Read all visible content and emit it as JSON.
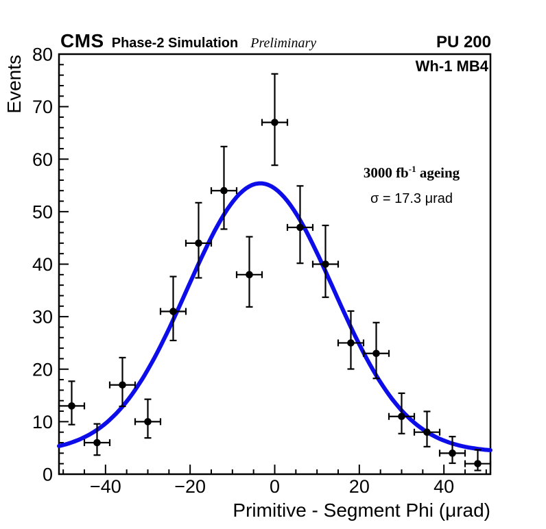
{
  "header": {
    "experiment": "CMS",
    "label": "Phase-2 Simulation",
    "status": "Preliminary",
    "pileup": "PU 200"
  },
  "plot": {
    "region_label": "Wh-1 MB4"
  },
  "annotations": {
    "luminosity_prefix": "3000 fb",
    "luminosity_exp": "-1",
    "luminosity_suffix": " ageing",
    "sigma": "σ = 17.3 μrad"
  },
  "chart_data": {
    "type": "scatter",
    "title": "",
    "xlabel": "Primitive - Segment Phi (μrad)",
    "ylabel": "Events",
    "xlim": [
      -51,
      51
    ],
    "ylim": [
      0,
      80
    ],
    "grid": false,
    "x_tick_values": [
      -40,
      -20,
      0,
      20,
      40
    ],
    "x_tick_labels": [
      "−40",
      "−20",
      "0",
      "20",
      "40"
    ],
    "x_minor_step": 5,
    "y_tick_values": [
      0,
      10,
      20,
      30,
      40,
      50,
      60,
      70,
      80
    ],
    "y_minor_step": 2,
    "bin_half_width": 3,
    "marker_color": "#000000",
    "curve_color": "#0d0dea",
    "points": {
      "x": [
        -48,
        -42,
        -36,
        -30,
        -24,
        -18,
        -12,
        -6,
        0,
        6,
        12,
        18,
        24,
        30,
        36,
        42,
        48
      ],
      "y": [
        13,
        6,
        17,
        10,
        31,
        44,
        54,
        38,
        67,
        47,
        40,
        25,
        23,
        11,
        8,
        4,
        2
      ],
      "yerr_low": [
        3.56,
        2.37,
        4.08,
        3.1,
        5.54,
        6.61,
        7.33,
        6.14,
        8.16,
        6.83,
        6.3,
        4.97,
        4.76,
        3.27,
        2.76,
        1.91,
        1.29
      ],
      "yerr_high": [
        4.7,
        3.58,
        5.2,
        4.27,
        6.64,
        7.7,
        8.4,
        7.22,
        9.24,
        7.9,
        7.38,
        6.07,
        5.87,
        4.42,
        3.95,
        3.16,
        2.64
      ]
    },
    "fit": {
      "shape": "gaussian_plus_constant",
      "amplitude": 51.2,
      "mean": -3.4,
      "sigma": 17.3,
      "constant": 4.2
    }
  }
}
